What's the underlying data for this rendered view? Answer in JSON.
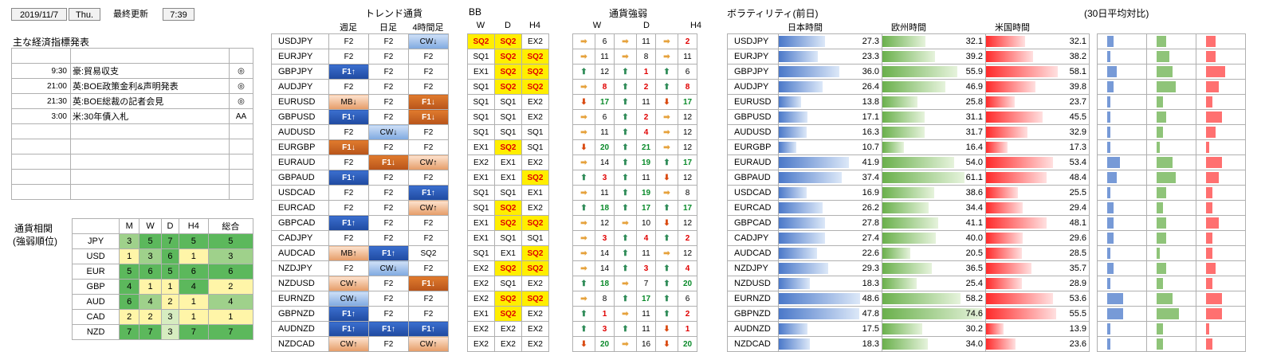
{
  "header": {
    "date": "2019/11/7",
    "dow": "Thu.",
    "updated_label": "最終更新",
    "time": "7:39"
  },
  "econ": {
    "title": "主な経済指標発表",
    "rows": [
      {
        "time": "",
        "event": "",
        "mark": ""
      },
      {
        "time": "9:30",
        "event": "豪:貿易収支",
        "mark": "◎"
      },
      {
        "time": "21:00",
        "event": "英:BOE政策金利&声明発表",
        "mark": "◎"
      },
      {
        "time": "21:30",
        "event": "英:BOE総裁の記者会見",
        "mark": "◎"
      },
      {
        "time": "3:00",
        "event": "米:30年債入札",
        "mark": "AA"
      },
      {
        "time": "",
        "event": "",
        "mark": ""
      },
      {
        "time": "",
        "event": "",
        "mark": ""
      },
      {
        "time": "",
        "event": "",
        "mark": ""
      },
      {
        "time": "",
        "event": "",
        "mark": ""
      },
      {
        "time": "",
        "event": "",
        "mark": ""
      }
    ]
  },
  "corr": {
    "title1": "通貨相関",
    "title2": "(強弱順位)",
    "cols": [
      "M",
      "W",
      "D",
      "H4",
      "総合"
    ],
    "rows": [
      {
        "ccy": "JPY",
        "v": [
          "3",
          "5",
          "7",
          "5",
          "5"
        ],
        "c": [
          "g2",
          "g3",
          "g3",
          "g3",
          "g3"
        ]
      },
      {
        "ccy": "USD",
        "v": [
          "1",
          "3",
          "6",
          "1",
          "3"
        ],
        "c": [
          "y",
          "g2",
          "g3",
          "y",
          "g2"
        ]
      },
      {
        "ccy": "EUR",
        "v": [
          "5",
          "6",
          "5",
          "6",
          "6"
        ],
        "c": [
          "g3",
          "g3",
          "g3",
          "g3",
          "g3"
        ]
      },
      {
        "ccy": "GBP",
        "v": [
          "4",
          "1",
          "1",
          "4",
          "2"
        ],
        "c": [
          "g3",
          "y",
          "y",
          "g3",
          "y"
        ]
      },
      {
        "ccy": "AUD",
        "v": [
          "6",
          "4",
          "2",
          "1",
          "4"
        ],
        "c": [
          "g3",
          "g2",
          "y",
          "y",
          "g2"
        ]
      },
      {
        "ccy": "CAD",
        "v": [
          "2",
          "2",
          "3",
          "1",
          "1"
        ],
        "c": [
          "y",
          "y",
          "g1",
          "y",
          "y"
        ]
      },
      {
        "ccy": "NZD",
        "v": [
          "7",
          "7",
          "3",
          "7",
          "7"
        ],
        "c": [
          "g3",
          "g3",
          "g1",
          "g3",
          "g3"
        ]
      }
    ]
  },
  "trend": {
    "title": "トレンド通貨",
    "cols": [
      "週足",
      "日足",
      "4時間足"
    ]
  },
  "bb": {
    "title": "BB",
    "cols": [
      "W",
      "D",
      "H4"
    ]
  },
  "strength": {
    "title": "通貨強弱",
    "cols": [
      "W",
      "D",
      "H4"
    ]
  },
  "vol": {
    "title": "ボラティリティ(前日)",
    "sub": "(30日平均対比)",
    "cols": [
      "日本時間",
      "欧州時間",
      "米国時間"
    ]
  },
  "arrow_colors": {
    "up": "#2e8b57",
    "right": "#e6a23c",
    "down": "#d9480f"
  },
  "rows": [
    {
      "pair": "USDJPY",
      "t": [
        "F2",
        "F2",
        "CW↓"
      ],
      "tc": [
        "f2",
        "f2",
        "b-lblue"
      ],
      "bb": [
        "SQ2",
        "SQ2",
        "EX2"
      ],
      "s": [
        "→",
        "6",
        "→",
        "11",
        "→",
        "2"
      ],
      "sc": [
        "right",
        "",
        "right",
        "",
        "right",
        "red"
      ],
      "v": [
        "27.3",
        "32.1",
        "32.1"
      ],
      "vf": [
        0.45,
        0.42,
        0.38
      ],
      "r": [
        0.2,
        0.3,
        0.3
      ]
    },
    {
      "pair": "EURJPY",
      "t": [
        "F2",
        "F2",
        "F2"
      ],
      "tc": [
        "f2",
        "f2",
        "f2"
      ],
      "bb": [
        "SQ1",
        "SQ2",
        "SQ2"
      ],
      "s": [
        "→",
        "11",
        "→",
        "8",
        "→",
        "11"
      ],
      "sc": [
        "right",
        "",
        "right",
        "",
        "right",
        ""
      ],
      "v": [
        "23.3",
        "39.2",
        "38.2"
      ],
      "vf": [
        0.38,
        0.51,
        0.46
      ],
      "r": [
        0.1,
        0.4,
        0.3
      ]
    },
    {
      "pair": "GBPJPY",
      "t": [
        "F1↑",
        "F2",
        "F2"
      ],
      "tc": [
        "b-blue",
        "f2",
        "f2"
      ],
      "bb": [
        "EX1",
        "SQ2",
        "SQ2"
      ],
      "s": [
        "↑",
        "12",
        "↑",
        "1",
        "↑",
        "6"
      ],
      "sc": [
        "up",
        "",
        "up",
        "red",
        "up",
        ""
      ],
      "v": [
        "36.0",
        "55.9",
        "58.1"
      ],
      "vf": [
        0.59,
        0.73,
        0.7
      ],
      "r": [
        0.3,
        0.5,
        0.6
      ]
    },
    {
      "pair": "AUDJPY",
      "t": [
        "F2",
        "F2",
        "F2"
      ],
      "tc": [
        "f2",
        "f2",
        "f2"
      ],
      "bb": [
        "SQ1",
        "SQ2",
        "SQ2"
      ],
      "s": [
        "↗",
        "8",
        "↑",
        "2",
        "↑",
        "8"
      ],
      "sc": [
        "right",
        "red",
        "up",
        "red",
        "up",
        "red"
      ],
      "v": [
        "26.4",
        "46.9",
        "39.8"
      ],
      "vf": [
        0.43,
        0.61,
        0.48
      ],
      "r": [
        0.2,
        0.6,
        0.4
      ]
    },
    {
      "pair": "EURUSD",
      "t": [
        "MB↓",
        "F2",
        "F1↓"
      ],
      "tc": [
        "b-lor",
        "f2",
        "b-or"
      ],
      "bb": [
        "SQ1",
        "SQ1",
        "EX2"
      ],
      "s": [
        "↓",
        "17",
        "↑",
        "11",
        "↓",
        "17"
      ],
      "sc": [
        "down",
        "grn",
        "up",
        "",
        "down",
        "grn"
      ],
      "v": [
        "13.8",
        "25.8",
        "23.7"
      ],
      "vf": [
        0.22,
        0.34,
        0.28
      ],
      "r": [
        0.1,
        0.2,
        0.2
      ]
    },
    {
      "pair": "GBPUSD",
      "t": [
        "F1↑",
        "F2",
        "F1↓"
      ],
      "tc": [
        "b-blue",
        "f2",
        "b-or"
      ],
      "bb": [
        "SQ1",
        "SQ1",
        "EX2"
      ],
      "s": [
        "↗",
        "6",
        "↑",
        "2",
        "↗",
        "12"
      ],
      "sc": [
        "right",
        "",
        "up",
        "red",
        "right",
        ""
      ],
      "v": [
        "17.1",
        "31.1",
        "45.5"
      ],
      "vf": [
        0.28,
        0.41,
        0.55
      ],
      "r": [
        0.1,
        0.3,
        0.5
      ]
    },
    {
      "pair": "AUDUSD",
      "t": [
        "F2",
        "CW↓",
        "F2"
      ],
      "tc": [
        "f2",
        "b-lblue",
        "f2"
      ],
      "bb": [
        "SQ1",
        "SQ1",
        "SQ1"
      ],
      "s": [
        "→",
        "11",
        "↑",
        "4",
        "↗",
        "12"
      ],
      "sc": [
        "right",
        "",
        "up",
        "red",
        "right",
        ""
      ],
      "v": [
        "16.3",
        "31.7",
        "32.9"
      ],
      "vf": [
        0.27,
        0.41,
        0.4
      ],
      "r": [
        0.1,
        0.2,
        0.3
      ]
    },
    {
      "pair": "EURGBP",
      "t": [
        "F1↓",
        "F2",
        "F2"
      ],
      "tc": [
        "b-or",
        "f2",
        "f2"
      ],
      "bb": [
        "EX1",
        "SQ2",
        "SQ1"
      ],
      "s": [
        "↓",
        "20",
        "↑",
        "21",
        "↗",
        "12"
      ],
      "sc": [
        "down",
        "grn",
        "up",
        "grn",
        "right",
        ""
      ],
      "v": [
        "10.7",
        "16.4",
        "17.3"
      ],
      "vf": [
        0.17,
        0.21,
        0.21
      ],
      "r": [
        0.1,
        0.1,
        0.1
      ]
    },
    {
      "pair": "EURAUD",
      "t": [
        "F2",
        "F1↓",
        "CW↑"
      ],
      "tc": [
        "f2",
        "b-or",
        "b-lor"
      ],
      "bb": [
        "EX2",
        "EX1",
        "EX2"
      ],
      "s": [
        "↘",
        "14",
        "↑",
        "19",
        "↑",
        "17"
      ],
      "sc": [
        "right",
        "",
        "up",
        "grn",
        "up",
        "grn"
      ],
      "v": [
        "41.9",
        "54.0",
        "53.4"
      ],
      "vf": [
        0.68,
        0.7,
        0.65
      ],
      "r": [
        0.4,
        0.5,
        0.5
      ]
    },
    {
      "pair": "GBPAUD",
      "t": [
        "F1↑",
        "F2",
        "F2"
      ],
      "tc": [
        "b-blue",
        "f2",
        "f2"
      ],
      "bb": [
        "EX1",
        "EX1",
        "SQ2"
      ],
      "s": [
        "↑",
        "3",
        "↑",
        "11",
        "↓",
        "12"
      ],
      "sc": [
        "up",
        "red",
        "up",
        "",
        "down",
        ""
      ],
      "v": [
        "37.4",
        "61.1",
        "48.4"
      ],
      "vf": [
        0.61,
        0.8,
        0.59
      ],
      "r": [
        0.3,
        0.6,
        0.4
      ]
    },
    {
      "pair": "USDCAD",
      "t": [
        "F2",
        "F2",
        "F1↑"
      ],
      "tc": [
        "f2",
        "f2",
        "b-blue"
      ],
      "bb": [
        "SQ1",
        "SQ1",
        "EX1"
      ],
      "s": [
        "→",
        "11",
        "↑",
        "19",
        "↗",
        "8"
      ],
      "sc": [
        "right",
        "",
        "up",
        "grn",
        "right",
        ""
      ],
      "v": [
        "16.9",
        "38.6",
        "25.5"
      ],
      "vf": [
        0.27,
        0.5,
        0.31
      ],
      "r": [
        0.1,
        0.3,
        0.2
      ]
    },
    {
      "pair": "EURCAD",
      "t": [
        "F2",
        "F2",
        "CW↑"
      ],
      "tc": [
        "f2",
        "f2",
        "b-lor"
      ],
      "bb": [
        "SQ1",
        "SQ2",
        "EX2"
      ],
      "s": [
        "↑",
        "18",
        "↑",
        "17",
        "↑",
        "17"
      ],
      "sc": [
        "up",
        "grn",
        "up",
        "grn",
        "up",
        "grn"
      ],
      "v": [
        "26.2",
        "34.4",
        "29.4"
      ],
      "vf": [
        0.43,
        0.45,
        0.36
      ],
      "r": [
        0.2,
        0.2,
        0.2
      ]
    },
    {
      "pair": "GBPCAD",
      "t": [
        "F1↑",
        "F2",
        "F2"
      ],
      "tc": [
        "b-blue",
        "f2",
        "f2"
      ],
      "bb": [
        "EX1",
        "SQ2",
        "SQ2"
      ],
      "s": [
        "↗",
        "12",
        "→",
        "10",
        "↓",
        "12"
      ],
      "sc": [
        "right",
        "",
        "right",
        "",
        "down",
        ""
      ],
      "v": [
        "27.8",
        "41.1",
        "48.1"
      ],
      "vf": [
        0.45,
        0.54,
        0.59
      ],
      "r": [
        0.2,
        0.3,
        0.4
      ]
    },
    {
      "pair": "CADJPY",
      "t": [
        "F2",
        "F2",
        "F2"
      ],
      "tc": [
        "f2",
        "f2",
        "f2"
      ],
      "bb": [
        "EX1",
        "SQ1",
        "SQ1"
      ],
      "s": [
        "↗",
        "3",
        "↑",
        "4",
        "↑",
        "2"
      ],
      "sc": [
        "right",
        "red",
        "up",
        "red",
        "up",
        "red"
      ],
      "v": [
        "27.4",
        "40.0",
        "29.6"
      ],
      "vf": [
        0.45,
        0.52,
        0.36
      ],
      "r": [
        0.2,
        0.3,
        0.2
      ]
    },
    {
      "pair": "AUDCAD",
      "t": [
        "MB↑",
        "F1↑",
        "SQ2"
      ],
      "tc": [
        "b-lor",
        "b-blue",
        "f2"
      ],
      "bb": [
        "SQ1",
        "EX1",
        "SQ2"
      ],
      "s": [
        "↘",
        "14",
        "↑",
        "11",
        "→",
        "12"
      ],
      "sc": [
        "right",
        "",
        "up",
        "",
        "right",
        ""
      ],
      "v": [
        "22.6",
        "20.5",
        "28.5"
      ],
      "vf": [
        0.37,
        0.27,
        0.35
      ],
      "r": [
        0.1,
        0.1,
        0.2
      ]
    },
    {
      "pair": "NZDJPY",
      "t": [
        "F2",
        "CW↓",
        "F2"
      ],
      "tc": [
        "f2",
        "b-lblue",
        "f2"
      ],
      "bb": [
        "EX2",
        "SQ2",
        "SQ2"
      ],
      "s": [
        "↘",
        "14",
        "↑",
        "3",
        "↑",
        "4"
      ],
      "sc": [
        "right",
        "",
        "up",
        "red",
        "up",
        "red"
      ],
      "v": [
        "29.3",
        "36.5",
        "35.7"
      ],
      "vf": [
        0.48,
        0.48,
        0.44
      ],
      "r": [
        0.2,
        0.3,
        0.3
      ]
    },
    {
      "pair": "NZDUSD",
      "t": [
        "CW↑",
        "F2",
        "F1↓"
      ],
      "tc": [
        "b-lor",
        "f2",
        "b-or"
      ],
      "bb": [
        "EX2",
        "SQ1",
        "EX2"
      ],
      "s": [
        "↑",
        "18",
        "↘",
        "7",
        "↑",
        "20"
      ],
      "sc": [
        "up",
        "grn",
        "right",
        "",
        "up",
        "grn"
      ],
      "v": [
        "18.3",
        "25.4",
        "28.9"
      ],
      "vf": [
        0.3,
        0.33,
        0.35
      ],
      "r": [
        0.1,
        0.2,
        0.2
      ]
    },
    {
      "pair": "EURNZD",
      "t": [
        "CW↓",
        "F2",
        "F2"
      ],
      "tc": [
        "b-lblue",
        "f2",
        "f2"
      ],
      "bb": [
        "EX2",
        "SQ2",
        "SQ2"
      ],
      "s": [
        "↗",
        "8",
        "↑",
        "17",
        "↑",
        "6"
      ],
      "sc": [
        "right",
        "",
        "up",
        "grn",
        "up",
        ""
      ],
      "v": [
        "48.6",
        "58.2",
        "53.6"
      ],
      "vf": [
        0.79,
        0.76,
        0.65
      ],
      "r": [
        0.5,
        0.5,
        0.5
      ]
    },
    {
      "pair": "GBPNZD",
      "t": [
        "F1↑",
        "F2",
        "F2"
      ],
      "tc": [
        "b-blue",
        "f2",
        "f2"
      ],
      "bb": [
        "EX1",
        "SQ2",
        "EX2"
      ],
      "s": [
        "↑",
        "1",
        "↗",
        "11",
        "↑",
        "2"
      ],
      "sc": [
        "up",
        "red",
        "right",
        "",
        "up",
        "red"
      ],
      "v": [
        "47.8",
        "74.6",
        "55.5"
      ],
      "vf": [
        0.78,
        0.97,
        0.68
      ],
      "r": [
        0.5,
        0.7,
        0.5
      ]
    },
    {
      "pair": "AUDNZD",
      "t": [
        "F1↑",
        "F1↑",
        "F1↑"
      ],
      "tc": [
        "b-blue",
        "b-blue",
        "b-blue"
      ],
      "bb": [
        "EX2",
        "EX2",
        "EX2"
      ],
      "s": [
        "↑",
        "3",
        "↑",
        "11",
        "↓",
        "1"
      ],
      "sc": [
        "up",
        "red",
        "up",
        "",
        "down",
        "red"
      ],
      "v": [
        "17.5",
        "30.2",
        "13.9"
      ],
      "vf": [
        0.28,
        0.39,
        0.17
      ],
      "r": [
        0.1,
        0.2,
        0.1
      ]
    },
    {
      "pair": "NZDCAD",
      "t": [
        "CW↑",
        "F2",
        "CW↑"
      ],
      "tc": [
        "b-lor",
        "f2",
        "b-lor"
      ],
      "bb": [
        "EX2",
        "EX2",
        "EX2"
      ],
      "s": [
        "↓",
        "20",
        "↗",
        "16",
        "↓",
        "20"
      ],
      "sc": [
        "down",
        "grn",
        "right",
        "",
        "down",
        "grn"
      ],
      "v": [
        "18.3",
        "34.0",
        "23.6"
      ],
      "vf": [
        0.3,
        0.44,
        0.29
      ],
      "r": [
        0.1,
        0.2,
        0.2
      ]
    }
  ]
}
